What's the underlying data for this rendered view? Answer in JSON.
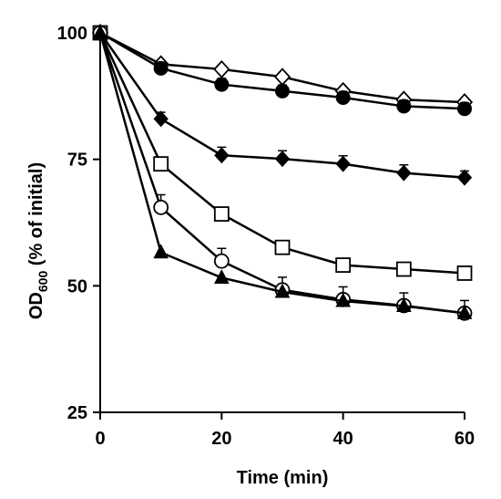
{
  "chart_data": {
    "type": "line",
    "xlabel": "Time (min)",
    "ylabel": {
      "prefix": "OD",
      "subscript": "600",
      "suffix": " (% of initial)"
    },
    "xlim": [
      0,
      60
    ],
    "ylim": [
      25,
      100
    ],
    "xticks": [
      0,
      20,
      40,
      60
    ],
    "yticks": [
      25,
      50,
      75,
      100
    ],
    "grid": false,
    "legend": "none",
    "series": [
      {
        "marker": "open-diamond",
        "x": [
          0,
          10,
          20,
          30,
          40,
          50,
          60
        ],
        "y": [
          100,
          93.8,
          92.8,
          91.3,
          88.5,
          86.8,
          86.3
        ],
        "err": [
          0,
          0,
          0,
          0,
          0,
          0,
          0
        ]
      },
      {
        "marker": "filled-circle",
        "x": [
          0,
          10,
          20,
          30,
          40,
          50,
          60
        ],
        "y": [
          100,
          93,
          89.8,
          88.5,
          87.2,
          85.5,
          85
        ],
        "err": [
          0,
          1.2,
          1.2,
          1.2,
          1.2,
          1.2,
          1.2
        ]
      },
      {
        "marker": "filled-diamond",
        "x": [
          0,
          10,
          20,
          30,
          40,
          50,
          60
        ],
        "y": [
          100,
          83,
          75.8,
          75.1,
          74.1,
          72.3,
          71.4
        ],
        "err": [
          0,
          1.3,
          1.6,
          1.6,
          1.6,
          1.6,
          1.3
        ]
      },
      {
        "marker": "open-square",
        "x": [
          0,
          10,
          20,
          30,
          40,
          50,
          60
        ],
        "y": [
          100,
          74.1,
          64.2,
          57.6,
          54.1,
          53.3,
          52.5
        ],
        "err": [
          0,
          0,
          0,
          0,
          0,
          0,
          0
        ]
      },
      {
        "marker": "open-circle",
        "x": [
          0,
          10,
          20,
          30,
          40,
          50,
          60
        ],
        "y": [
          100,
          65.5,
          54.9,
          49.2,
          47.3,
          46.1,
          44.6
        ],
        "err": [
          0,
          2.5,
          2.5,
          2.5,
          2.5,
          2.5,
          2.5
        ]
      },
      {
        "marker": "filled-triangle",
        "x": [
          0,
          10,
          20,
          30,
          40,
          50,
          60
        ],
        "y": [
          100,
          56.6,
          51.6,
          48.8,
          47,
          46,
          44.6
        ],
        "err": [
          0,
          0,
          0,
          0,
          0,
          0,
          0
        ]
      }
    ]
  }
}
